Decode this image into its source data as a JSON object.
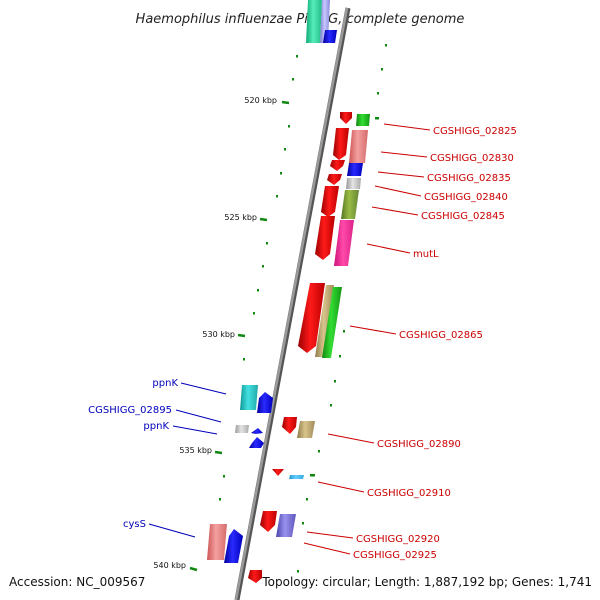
{
  "title": "Haemophilus influenzae PittGG, complete genome",
  "footer": {
    "accession": "Accession: NC_009567",
    "topology": "Topology: circular; Length: 1,887,192 bp; Genes: 1,741"
  },
  "colors": {
    "forward_label": "#cc0000",
    "reverse_label": "#0000bb",
    "backbone": "#777777",
    "tick": "#118811"
  },
  "ticks": [
    "520 kbp",
    "525 kbp",
    "530 kbp",
    "535 kbp",
    "540 kbp"
  ],
  "forward_labels": [
    {
      "name": "CGSHIGG_02825"
    },
    {
      "name": "CGSHIGG_02830"
    },
    {
      "name": "CGSHIGG_02835"
    },
    {
      "name": "CGSHIGG_02840"
    },
    {
      "name": "CGSHIGG_02845"
    },
    {
      "name": "mutL"
    },
    {
      "name": "CGSHIGG_02865"
    },
    {
      "name": "CGSHIGG_02890"
    },
    {
      "name": "CGSHIGG_02910"
    },
    {
      "name": "CGSHIGG_02920"
    },
    {
      "name": "CGSHIGG_02925"
    }
  ],
  "reverse_labels": [
    {
      "name": "ppnK"
    },
    {
      "name": "CGSHIGG_02895"
    },
    {
      "name": "ppnK"
    },
    {
      "name": "cysS"
    }
  ]
}
